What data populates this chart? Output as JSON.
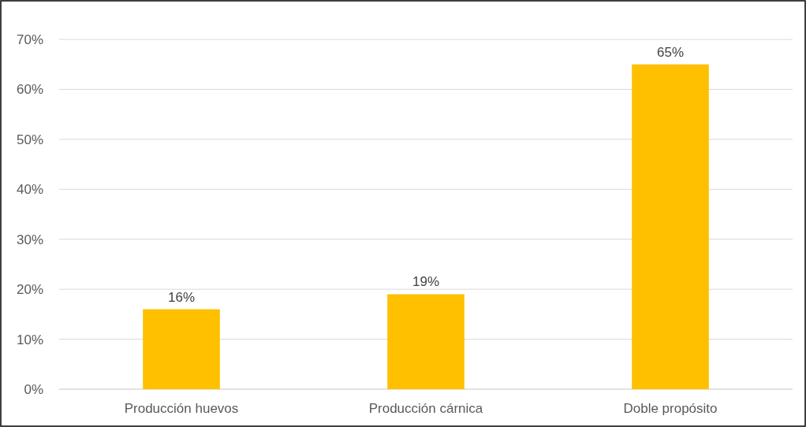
{
  "chart_data": {
    "type": "bar",
    "categories": [
      "Producción huevos",
      "Producción cárnica",
      "Doble propósito"
    ],
    "values": [
      16,
      19,
      65
    ],
    "color": "#ffc000",
    "value_labels": [
      "16%",
      "19%",
      "65%"
    ],
    "ylim": [
      0,
      70
    ],
    "yticks": [
      {
        "value": 0,
        "label": "0%"
      },
      {
        "value": 10,
        "label": "10%"
      },
      {
        "value": 20,
        "label": "20%"
      },
      {
        "value": 30,
        "label": "30%"
      },
      {
        "value": 40,
        "label": "40%"
      },
      {
        "value": 50,
        "label": "50%"
      },
      {
        "value": 60,
        "label": "60%"
      },
      {
        "value": 70,
        "label": "70%"
      }
    ],
    "grid": true
  }
}
